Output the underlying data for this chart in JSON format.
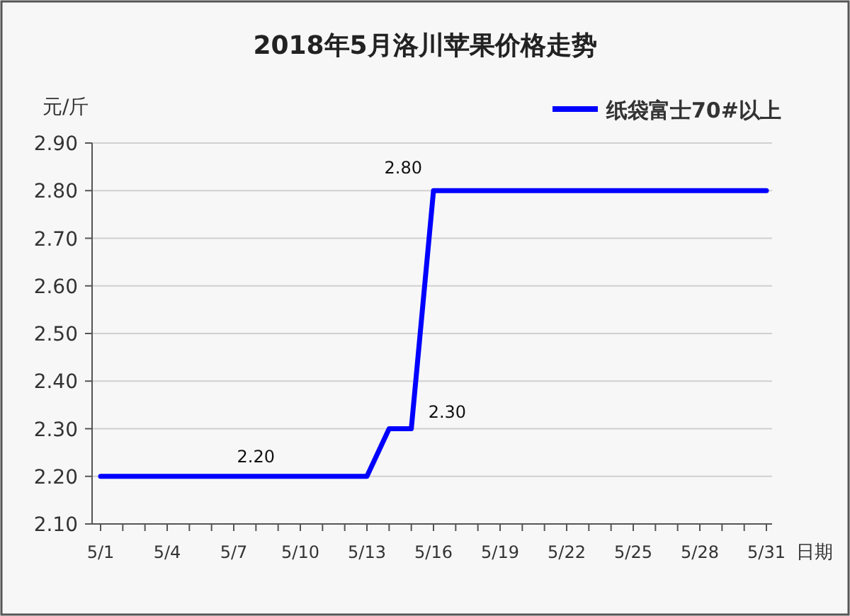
{
  "chart_data": {
    "type": "line",
    "title": "2018年5月洛川苹果价格走势",
    "ylabel": "元/斤",
    "xlabel": "日期",
    "categories": [
      "5/1",
      null,
      null,
      "5/4",
      null,
      null,
      "5/7",
      null,
      null,
      "5/10",
      null,
      null,
      "5/13",
      null,
      null,
      "5/16",
      null,
      null,
      "5/19",
      null,
      null,
      "5/22",
      null,
      null,
      "5/25",
      null,
      null,
      "5/28",
      null,
      null,
      "5/31"
    ],
    "series": [
      {
        "name": "纸袋富士70#以上",
        "color": "#0000ff",
        "values": [
          2.2,
          2.2,
          2.2,
          2.2,
          2.2,
          2.2,
          2.2,
          2.2,
          2.2,
          2.2,
          2.2,
          2.2,
          2.2,
          2.3,
          2.3,
          2.8,
          2.8,
          2.8,
          2.8,
          2.8,
          2.8,
          2.8,
          2.8,
          2.8,
          2.8,
          2.8,
          2.8,
          2.8,
          2.8,
          2.8,
          2.8
        ],
        "value_labels": [
          null,
          null,
          null,
          null,
          null,
          null,
          null,
          "2.20",
          null,
          null,
          null,
          null,
          null,
          null,
          "2.30",
          "2.80",
          null,
          null,
          null,
          null,
          null,
          null,
          null,
          null,
          null,
          null,
          null,
          null,
          null,
          null,
          null
        ]
      }
    ],
    "ylim": [
      2.1,
      2.9
    ],
    "yticks": [
      {
        "value": 2.1,
        "label": "2.10"
      },
      {
        "value": 2.2,
        "label": "2.20"
      },
      {
        "value": 2.3,
        "label": "2.30"
      },
      {
        "value": 2.4,
        "label": "2.40"
      },
      {
        "value": 2.5,
        "label": "2.50"
      },
      {
        "value": 2.6,
        "label": "2.60"
      },
      {
        "value": 2.7,
        "label": "2.70"
      },
      {
        "value": 2.8,
        "label": "2.80"
      },
      {
        "value": 2.9,
        "label": "2.90"
      }
    ],
    "grid": "y",
    "legend": "top right"
  }
}
